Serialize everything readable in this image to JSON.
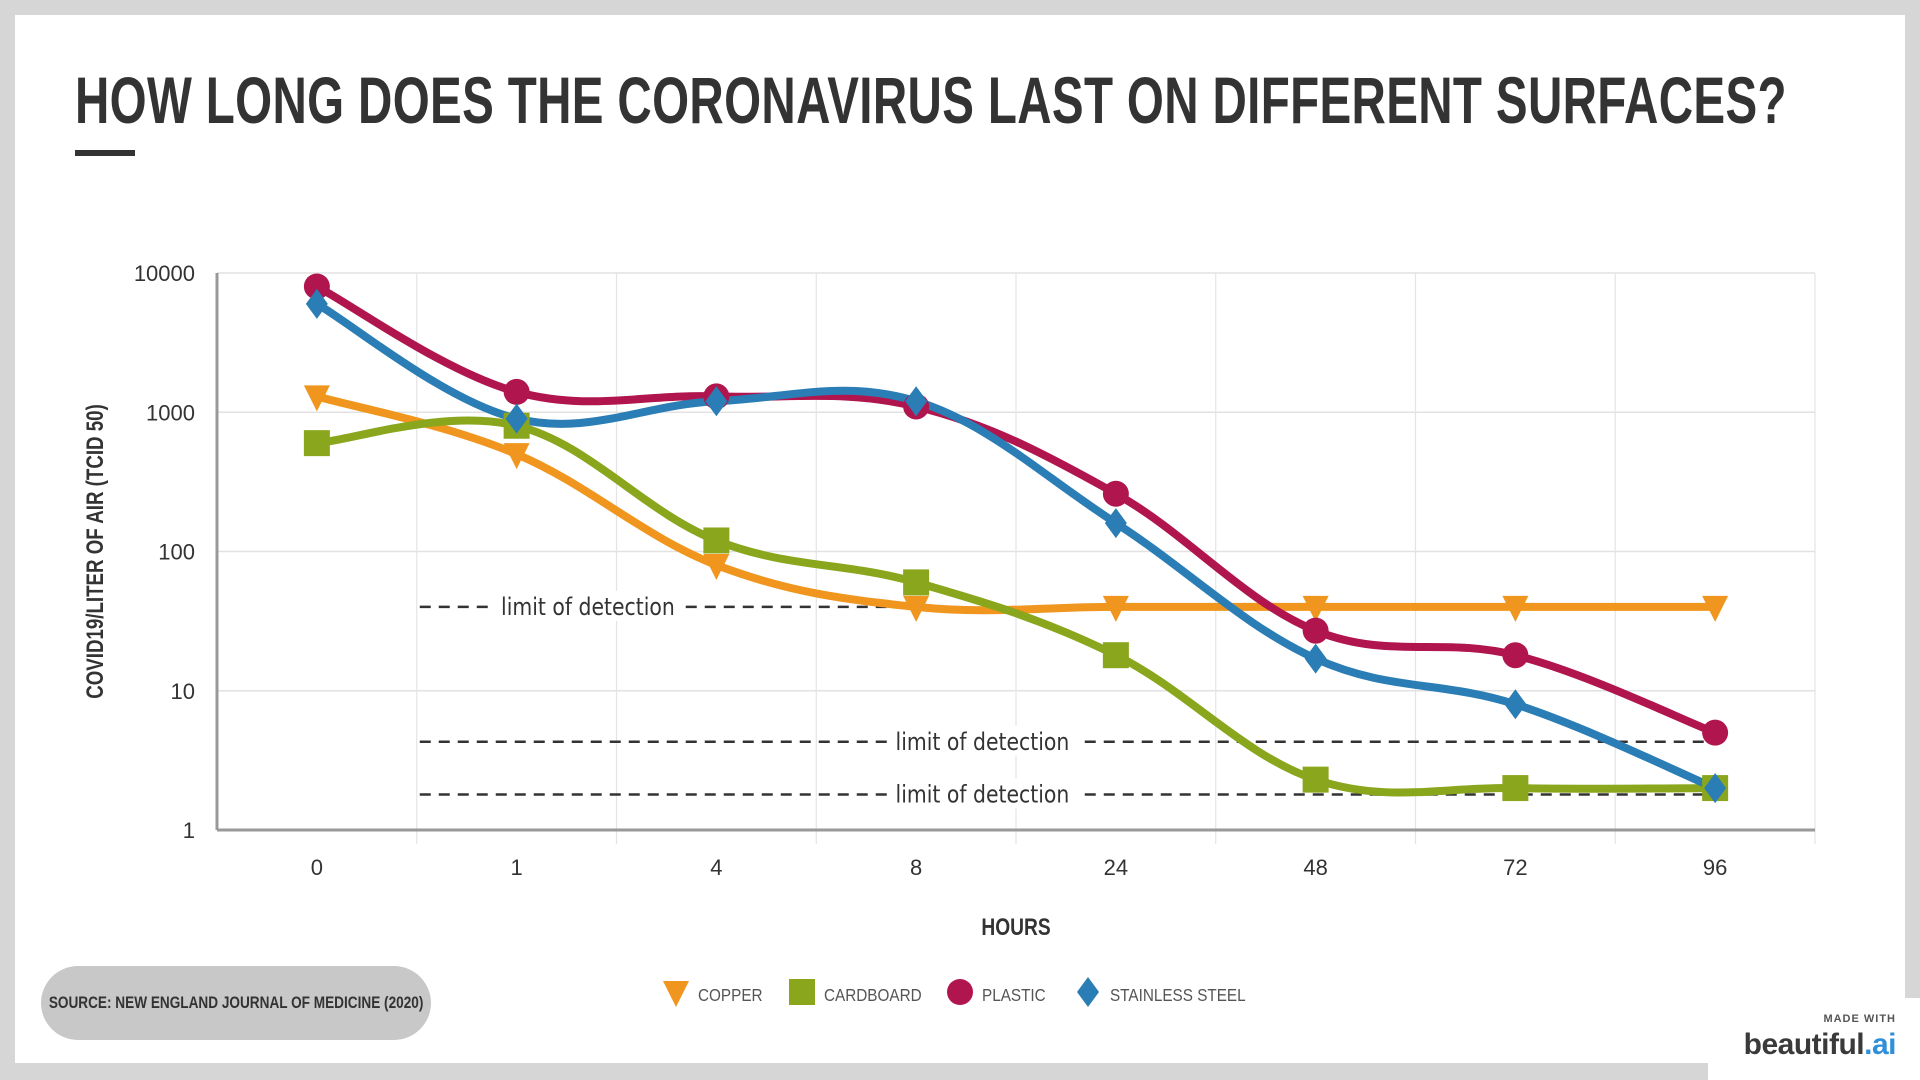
{
  "title": "HOW LONG DOES THE CORONAVIRUS LAST ON DIFFERENT SURFACES?",
  "source": "SOURCE: NEW ENGLAND JOURNAL OF MEDICINE (2020)",
  "badge": {
    "made_with": "MADE WITH",
    "brand_main": "beautiful",
    "brand_suffix": ".ai"
  },
  "chart_data": {
    "type": "line",
    "title": "",
    "xlabel": "HOURS",
    "ylabel": "COVID19/LITER OF AIR (TCID 50)",
    "yscale": "log",
    "ylim": [
      1,
      10000
    ],
    "yticks": [
      "1",
      "10",
      "100",
      "1000",
      "10000"
    ],
    "categories": [
      "0",
      "1",
      "4",
      "8",
      "24",
      "48",
      "72",
      "96"
    ],
    "grid": true,
    "legend_position": "bottom",
    "series": [
      {
        "name": "COPPER",
        "color": "#f0961e",
        "marker": "triangle-down",
        "values": [
          1300,
          500,
          80,
          40,
          40,
          40,
          40,
          40
        ]
      },
      {
        "name": "CARDBOARD",
        "color": "#8aa61c",
        "marker": "square",
        "values": [
          600,
          800,
          120,
          60,
          18,
          2.3,
          2,
          2
        ]
      },
      {
        "name": "PLASTIC",
        "color": "#b0154d",
        "marker": "circle",
        "values": [
          8000,
          1400,
          1300,
          1100,
          260,
          27,
          18,
          5
        ]
      },
      {
        "name": "STAINLESS STEEL",
        "color": "#2a7db5",
        "marker": "diamond",
        "values": [
          6000,
          900,
          1200,
          1200,
          160,
          17,
          8,
          2
        ]
      }
    ],
    "annotations": [
      {
        "text": "limit of detection",
        "y": 40,
        "x_from": "1",
        "x_to": "8"
      },
      {
        "text": "limit of detection",
        "y": 4.3,
        "x_from": "1",
        "x_to": "96"
      },
      {
        "text": "limit of detection",
        "y": 1.8,
        "x_from": "1",
        "x_to": "96"
      }
    ]
  }
}
